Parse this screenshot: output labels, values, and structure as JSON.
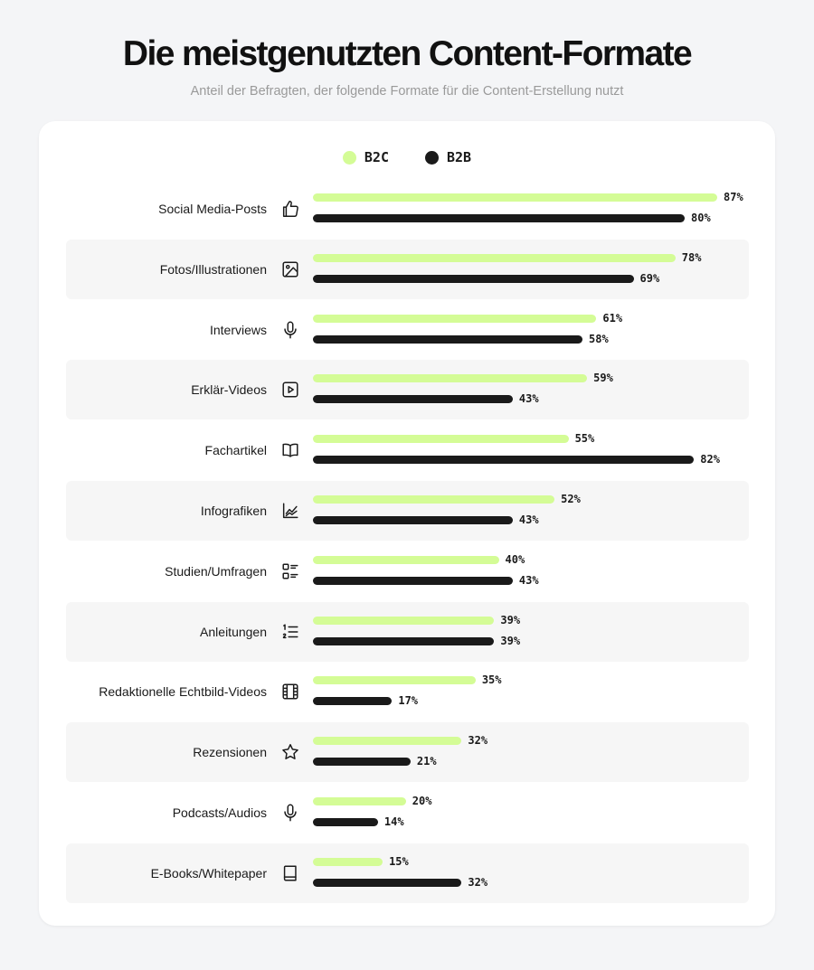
{
  "header": {
    "title": "Die meistgenutzten Content-Formate",
    "subtitle": "Anteil der Befragten, der folgende Formate für die Content-Erstellung nutzt"
  },
  "colors": {
    "b2c": "#d4fc96",
    "b2b": "#1a1a1a"
  },
  "chart_data": {
    "type": "bar",
    "orientation": "horizontal",
    "title": "Die meistgenutzten Content-Formate",
    "subtitle": "Anteil der Befragten, der folgende Formate für die Content-Erstellung nutzt",
    "legend": {
      "position": "top-center",
      "entries": [
        "B2C",
        "B2B"
      ]
    },
    "xlim": [
      0,
      87
    ],
    "unit": "%",
    "grid": false,
    "categories": [
      "Social Media-Posts",
      "Fotos/Illustrationen",
      "Interviews",
      "Erklär-Videos",
      "Fachartikel",
      "Infografiken",
      "Studien/Umfragen",
      "Anleitungen",
      "Redaktionelle Echtbild-Videos",
      "Rezensionen",
      "Podcasts/Audios",
      "E-Books/Whitepaper"
    ],
    "icons": [
      "thumbs-up-icon",
      "image-icon",
      "microphone-icon",
      "play-video-icon",
      "open-book-icon",
      "line-chart-icon",
      "survey-list-icon",
      "numbered-list-icon",
      "film-strip-icon",
      "star-icon",
      "microphone-icon",
      "ebook-icon"
    ],
    "series": [
      {
        "name": "B2C",
        "values": [
          87,
          78,
          61,
          59,
          55,
          52,
          40,
          39,
          35,
          32,
          20,
          15
        ]
      },
      {
        "name": "B2B",
        "values": [
          80,
          69,
          58,
          43,
          82,
          43,
          43,
          39,
          17,
          21,
          14,
          32
        ]
      }
    ]
  }
}
